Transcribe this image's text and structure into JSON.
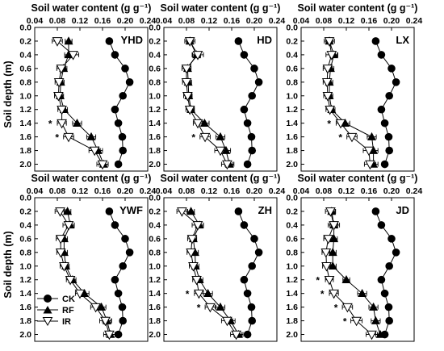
{
  "figure": {
    "x_axis_title": "Soil water content (g g⁻¹)",
    "y_axis_title": "Soil depth (m)",
    "x_ticks": [
      "0.04",
      "0.08",
      "0.12",
      "0.16",
      "0.20",
      "0.24"
    ],
    "y_ticks": [
      "0.0",
      "0.2",
      "0.4",
      "0.6",
      "0.8",
      "1.0",
      "1.2",
      "1.4",
      "1.6",
      "1.8",
      "2.0"
    ],
    "legend": {
      "ck": "CK",
      "rf": "RF",
      "ir": "IR"
    }
  },
  "chart_data": [
    {
      "type": "line",
      "panel": "YHD",
      "xlabel": "Soil water content (g g⁻¹)",
      "ylabel": "Soil depth (m)",
      "xlim": [
        0.04,
        0.24
      ],
      "ylim": [
        2.1,
        0.0
      ],
      "depth": [
        0.2,
        0.4,
        0.6,
        0.8,
        1.0,
        1.2,
        1.4,
        1.6,
        1.8,
        2.0
      ],
      "series": [
        {
          "name": "CK",
          "marker": "circle",
          "values": [
            0.172,
            0.182,
            0.2,
            0.208,
            0.196,
            0.182,
            0.188,
            0.195,
            0.196,
            0.188
          ]
        },
        {
          "name": "RF",
          "marker": "triangle-up",
          "values": [
            0.1,
            0.1,
            0.091,
            0.086,
            0.085,
            0.092,
            0.115,
            0.14,
            0.152,
            0.162
          ],
          "err": [
            0.006,
            0.007,
            0.006,
            0.006,
            0.006,
            0.006,
            0.008,
            0.008,
            0.008,
            0.008
          ]
        },
        {
          "name": "IR",
          "marker": "triangle-down",
          "values": [
            0.08,
            0.108,
            0.087,
            0.083,
            0.082,
            0.088,
            0.088,
            0.1,
            0.146,
            0.16
          ],
          "err": [
            0.009,
            0.01,
            0.008,
            0.007,
            0.007,
            0.007,
            0.008,
            0.009,
            0.01,
            0.01
          ]
        }
      ],
      "significance_depths": [
        1.4,
        1.6
      ]
    },
    {
      "type": "line",
      "panel": "HD",
      "xlabel": "Soil water content (g g⁻¹)",
      "ylabel": "Soil depth (m)",
      "xlim": [
        0.04,
        0.24
      ],
      "ylim": [
        2.1,
        0.0
      ],
      "depth": [
        0.2,
        0.4,
        0.6,
        0.8,
        1.0,
        1.2,
        1.4,
        1.6,
        1.8,
        2.0
      ],
      "series": [
        {
          "name": "CK",
          "marker": "circle",
          "values": [
            0.172,
            0.182,
            0.2,
            0.208,
            0.196,
            0.182,
            0.188,
            0.195,
            0.196,
            0.188
          ]
        },
        {
          "name": "RF",
          "marker": "triangle-up",
          "values": [
            0.086,
            0.098,
            0.082,
            0.083,
            0.084,
            0.088,
            0.112,
            0.14,
            0.15,
            0.156
          ],
          "err": [
            0.006,
            0.007,
            0.006,
            0.006,
            0.006,
            0.006,
            0.008,
            0.008,
            0.008,
            0.008
          ]
        },
        {
          "name": "IR",
          "marker": "triangle-down",
          "values": [
            0.086,
            0.1,
            0.08,
            0.08,
            0.082,
            0.086,
            0.1,
            0.113,
            0.14,
            0.152
          ],
          "err": [
            0.009,
            0.01,
            0.008,
            0.007,
            0.007,
            0.007,
            0.008,
            0.009,
            0.01,
            0.01
          ]
        }
      ],
      "significance_depths": [
        1.6
      ]
    },
    {
      "type": "line",
      "panel": "LX",
      "xlabel": "Soil water content (g g⁻¹)",
      "ylabel": "Soil depth (m)",
      "xlim": [
        0.04,
        0.24
      ],
      "ylim": [
        2.1,
        0.0
      ],
      "depth": [
        0.2,
        0.4,
        0.6,
        0.8,
        1.0,
        1.2,
        1.4,
        1.6,
        1.8,
        2.0
      ],
      "series": [
        {
          "name": "CK",
          "marker": "circle",
          "values": [
            0.172,
            0.182,
            0.2,
            0.208,
            0.196,
            0.182,
            0.188,
            0.195,
            0.196,
            0.188
          ]
        },
        {
          "name": "RF",
          "marker": "triangle-up",
          "values": [
            0.09,
            0.098,
            0.092,
            0.09,
            0.09,
            0.094,
            0.118,
            0.165,
            0.168,
            0.168
          ],
          "err": [
            0.006,
            0.007,
            0.006,
            0.006,
            0.006,
            0.006,
            0.008,
            0.008,
            0.008,
            0.008
          ]
        },
        {
          "name": "IR",
          "marker": "triangle-down",
          "values": [
            0.09,
            0.094,
            0.087,
            0.086,
            0.087,
            0.091,
            0.11,
            0.13,
            0.16,
            0.162
          ],
          "err": [
            0.009,
            0.01,
            0.008,
            0.007,
            0.007,
            0.007,
            0.008,
            0.009,
            0.01,
            0.01
          ]
        }
      ],
      "significance_depths": [
        1.4,
        1.6
      ]
    },
    {
      "type": "line",
      "panel": "YWF",
      "xlabel": "Soil water content (g g⁻¹)",
      "ylabel": "Soil depth (m)",
      "xlim": [
        0.04,
        0.24
      ],
      "ylim": [
        2.1,
        0.0
      ],
      "depth": [
        0.2,
        0.4,
        0.6,
        0.8,
        1.0,
        1.2,
        1.4,
        1.6,
        1.8,
        2.0
      ],
      "series": [
        {
          "name": "CK",
          "marker": "circle",
          "values": [
            0.172,
            0.182,
            0.2,
            0.208,
            0.196,
            0.182,
            0.188,
            0.195,
            0.196,
            0.188
          ]
        },
        {
          "name": "RF",
          "marker": "triangle-up",
          "values": [
            0.098,
            0.103,
            0.092,
            0.092,
            0.095,
            0.107,
            0.128,
            0.158,
            0.168,
            0.174
          ],
          "err": [
            0.006,
            0.007,
            0.006,
            0.006,
            0.006,
            0.006,
            0.008,
            0.008,
            0.008,
            0.008
          ]
        },
        {
          "name": "IR",
          "marker": "triangle-down",
          "values": [
            0.085,
            0.1,
            0.086,
            0.086,
            0.092,
            0.103,
            0.12,
            0.148,
            0.165,
            0.172
          ],
          "err": [
            0.009,
            0.01,
            0.008,
            0.007,
            0.007,
            0.007,
            0.008,
            0.009,
            0.01,
            0.01
          ]
        }
      ],
      "significance_depths": []
    },
    {
      "type": "line",
      "panel": "ZH",
      "xlabel": "Soil water content (g g⁻¹)",
      "ylabel": "Soil depth (m)",
      "xlim": [
        0.04,
        0.24
      ],
      "ylim": [
        2.1,
        0.0
      ],
      "depth": [
        0.2,
        0.4,
        0.6,
        0.8,
        1.0,
        1.2,
        1.4,
        1.6,
        1.8,
        2.0
      ],
      "series": [
        {
          "name": "CK",
          "marker": "circle",
          "values": [
            0.172,
            0.182,
            0.2,
            0.208,
            0.196,
            0.182,
            0.188,
            0.195,
            0.196,
            0.188
          ]
        },
        {
          "name": "RF",
          "marker": "triangle-up",
          "values": [
            0.088,
            0.103,
            0.092,
            0.095,
            0.096,
            0.103,
            0.118,
            0.14,
            0.158,
            0.172
          ],
          "err": [
            0.006,
            0.007,
            0.006,
            0.006,
            0.006,
            0.006,
            0.008,
            0.008,
            0.008,
            0.008
          ]
        },
        {
          "name": "IR",
          "marker": "triangle-down",
          "values": [
            0.072,
            0.1,
            0.09,
            0.088,
            0.092,
            0.098,
            0.102,
            0.122,
            0.152,
            0.168
          ],
          "err": [
            0.009,
            0.01,
            0.008,
            0.007,
            0.007,
            0.007,
            0.008,
            0.009,
            0.01,
            0.01
          ]
        }
      ],
      "significance_depths": [
        1.4,
        1.6
      ]
    },
    {
      "type": "line",
      "panel": "JD",
      "xlabel": "Soil water content (g g⁻¹)",
      "ylabel": "Soil depth (m)",
      "xlim": [
        0.04,
        0.24
      ],
      "ylim": [
        2.1,
        0.0
      ],
      "depth": [
        0.2,
        0.4,
        0.6,
        0.8,
        1.0,
        1.2,
        1.4,
        1.6,
        1.8,
        2.0
      ],
      "series": [
        {
          "name": "CK",
          "marker": "circle",
          "values": [
            0.172,
            0.182,
            0.2,
            0.208,
            0.196,
            0.182,
            0.188,
            0.195,
            0.196,
            0.188
          ]
        },
        {
          "name": "RF",
          "marker": "triangle-up",
          "values": [
            0.094,
            0.098,
            0.098,
            0.096,
            0.096,
            0.12,
            0.148,
            0.168,
            0.172,
            0.18
          ],
          "err": [
            0.006,
            0.007,
            0.006,
            0.006,
            0.006,
            0.006,
            0.008,
            0.008,
            0.008,
            0.008
          ]
        },
        {
          "name": "IR",
          "marker": "triangle-down",
          "values": [
            0.092,
            0.098,
            0.088,
            0.084,
            0.085,
            0.09,
            0.098,
            0.122,
            0.138,
            0.165
          ],
          "err": [
            0.009,
            0.01,
            0.008,
            0.007,
            0.007,
            0.007,
            0.008,
            0.009,
            0.01,
            0.01
          ]
        }
      ],
      "significance_depths": [
        1.2,
        1.4,
        1.6,
        1.8
      ]
    }
  ]
}
